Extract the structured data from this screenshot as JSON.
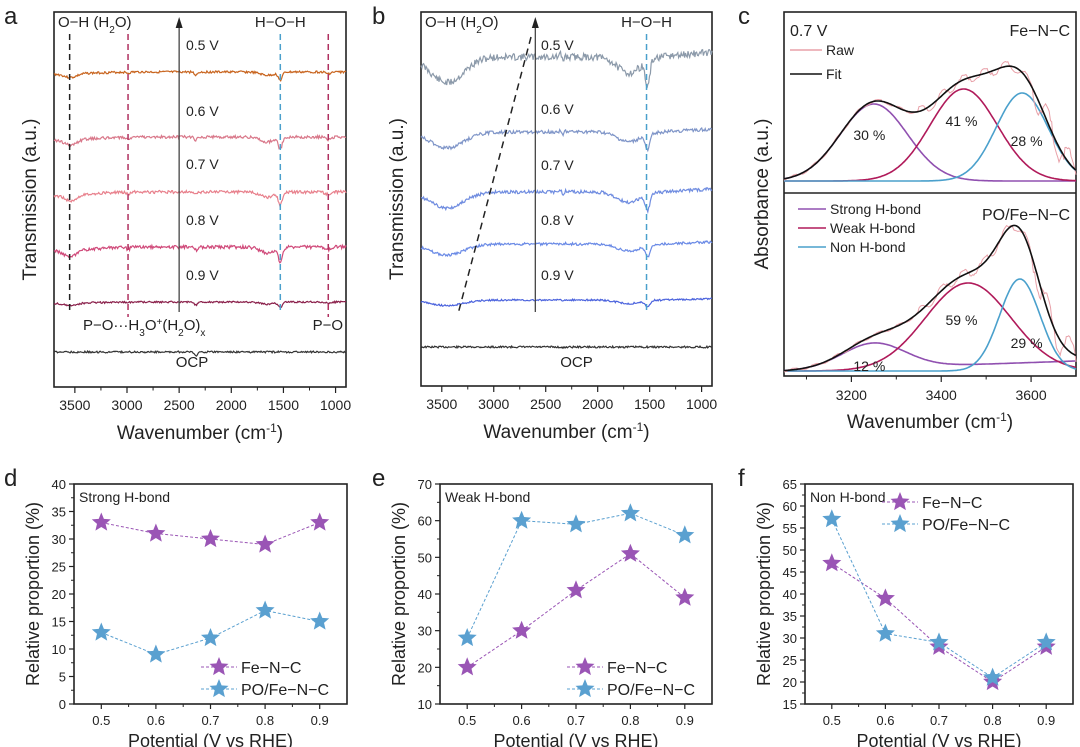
{
  "figure": {
    "panel_labels": [
      "a",
      "b",
      "c",
      "d",
      "e",
      "f"
    ]
  },
  "chart_data": [
    {
      "panel": "a",
      "type": "line",
      "title": "",
      "xlabel": "Wavenumber (cm⁻¹)",
      "xlabel_main": "Wavenumber (cm",
      "xlabel_sup": "-1",
      "ylabel": "Transmission (a.u.)",
      "xlim": [
        3700,
        900
      ],
      "x_ticks": [
        3500,
        3000,
        2500,
        2000,
        1500,
        1000
      ],
      "x_tick_labels": [
        "3500",
        "3000",
        "2500",
        "2000",
        "1500",
        "1000"
      ],
      "series": [
        {
          "name": "0.5 V",
          "color": "#c8641e"
        },
        {
          "name": "0.6 V",
          "color": "#d9788a"
        },
        {
          "name": "0.7 V",
          "color": "#e8808c"
        },
        {
          "name": "0.8 V",
          "color": "#d04a7a"
        },
        {
          "name": "0.9 V",
          "color": "#8a1f4a"
        },
        {
          "name": "OCP",
          "color": "#333333"
        }
      ],
      "annotations": {
        "oh_label": "O−H (H",
        "oh_sub": "2",
        "oh_end": "O)",
        "hoh_label": "H−O−H",
        "po_h3o_label": "P−O···H",
        "po_h3o_sub1": "3",
        "po_h3o_mid": "O",
        "po_h3o_sup": "+",
        "po_h3o_rest": "(H",
        "po_h3o_sub2": "2",
        "po_h3o_end": "O)",
        "po_h3o_subx": "x",
        "po_label": "P−O",
        "ocp_label": "OCP",
        "dashed_lines_cm": [
          3550,
          2990,
          1530,
          1070
        ]
      }
    },
    {
      "panel": "b",
      "type": "line",
      "xlabel": "Wavenumber (cm⁻¹)",
      "xlabel_main": "Wavenumber (cm",
      "xlabel_sup": "-1",
      "ylabel": "Transmission (a.u.)",
      "xlim": [
        3700,
        900
      ],
      "x_ticks": [
        3500,
        3000,
        2500,
        2000,
        1500,
        1000
      ],
      "x_tick_labels": [
        "3500",
        "3000",
        "2500",
        "2000",
        "1500",
        "1000"
      ],
      "series": [
        {
          "name": "0.5 V",
          "color": "#8c9aaa"
        },
        {
          "name": "0.6 V",
          "color": "#7f95c8"
        },
        {
          "name": "0.7 V",
          "color": "#6f8ce0"
        },
        {
          "name": "0.8 V",
          "color": "#6a8ae6"
        },
        {
          "name": "0.9 V",
          "color": "#4a62dd"
        },
        {
          "name": "OCP",
          "color": "#333333"
        }
      ],
      "annotations": {
        "oh_label": "O−H (H",
        "oh_sub": "2",
        "oh_end": "O)",
        "hoh_label": "H−O−H",
        "ocp_label": "OCP"
      }
    },
    {
      "panel": "c",
      "type": "area",
      "xlabel": "Wavenumber (cm⁻¹)",
      "xlabel_main": "Wavenumber (cm",
      "xlabel_sup": "-1",
      "ylabel": "Absorbance (a.u.)",
      "xlim": [
        3050,
        3700
      ],
      "x_ticks": [
        3200,
        3400,
        3600
      ],
      "x_tick_labels": [
        "3200",
        "3400",
        "3600"
      ],
      "potential_label": "0.7 V",
      "legend_top": [
        {
          "name": "Raw",
          "color": "#e8a0a8"
        },
        {
          "name": "Fit",
          "color": "#111111"
        }
      ],
      "legend_bottom": [
        {
          "name": "Strong H-bond",
          "color": "#9050b0"
        },
        {
          "name": "Weak H-bond",
          "color": "#b01a5a"
        },
        {
          "name": "Non H-bond",
          "color": "#4aa0cc"
        }
      ],
      "subplots": [
        {
          "name": "Fe−N−C",
          "components": [
            {
              "name": "Strong H-bond",
              "center": 3250,
              "percent": 30,
              "label": "30 %"
            },
            {
              "name": "Weak H-bond",
              "center": 3450,
              "percent": 41,
              "label": "41 %"
            },
            {
              "name": "Non H-bond",
              "center": 3580,
              "percent": 28,
              "label": "28 %"
            }
          ]
        },
        {
          "name": "PO/Fe−N−C",
          "components": [
            {
              "name": "Strong H-bond",
              "center": 3250,
              "percent": 12,
              "label": "12 %"
            },
            {
              "name": "Weak H-bond",
              "center": 3460,
              "percent": 59,
              "label": "59 %"
            },
            {
              "name": "Non H-bond",
              "center": 3575,
              "percent": 29,
              "label": "29 %"
            }
          ]
        }
      ]
    },
    {
      "panel": "d",
      "type": "scatter",
      "annotation": "Strong H-bond",
      "xlabel": "Potential (V vs RHE)",
      "ylabel": "Relative proportion (%)",
      "x": [
        0.5,
        0.6,
        0.7,
        0.8,
        0.9
      ],
      "xlim": [
        0.45,
        0.95
      ],
      "ylim": [
        0,
        40
      ],
      "y_ticks": [
        0,
        5,
        10,
        15,
        20,
        25,
        30,
        35,
        40
      ],
      "x_tick_labels": [
        "0.5",
        "0.6",
        "0.7",
        "0.8",
        "0.9"
      ],
      "legend_position": "bottom-right",
      "series": [
        {
          "name": "Fe−N−C",
          "color": "#9a55b5",
          "values": [
            33,
            31,
            30,
            29,
            33
          ]
        },
        {
          "name": "PO/Fe−N−C",
          "color": "#5aa0d0",
          "values": [
            13,
            9,
            12,
            17,
            15
          ]
        }
      ]
    },
    {
      "panel": "e",
      "type": "scatter",
      "annotation": "Weak H-bond",
      "xlabel": "Potential (V vs RHE)",
      "ylabel": "Relative proportion (%)",
      "x": [
        0.5,
        0.6,
        0.7,
        0.8,
        0.9
      ],
      "xlim": [
        0.45,
        0.95
      ],
      "ylim": [
        10,
        70
      ],
      "y_ticks": [
        10,
        20,
        30,
        40,
        50,
        60,
        70
      ],
      "x_tick_labels": [
        "0.5",
        "0.6",
        "0.7",
        "0.8",
        "0.9"
      ],
      "legend_position": "bottom-right",
      "series": [
        {
          "name": "Fe−N−C",
          "color": "#9a55b5",
          "values": [
            20,
            30,
            41,
            51,
            39
          ]
        },
        {
          "name": "PO/Fe−N−C",
          "color": "#5aa0d0",
          "values": [
            28,
            60,
            59,
            62,
            56
          ]
        }
      ]
    },
    {
      "panel": "f",
      "type": "scatter",
      "annotation": "Non H-bond",
      "xlabel": "Potential (V vs RHE)",
      "ylabel": "Relative proportion (%)",
      "x": [
        0.5,
        0.6,
        0.7,
        0.8,
        0.9
      ],
      "xlim": [
        0.45,
        0.95
      ],
      "ylim": [
        15,
        65
      ],
      "y_ticks": [
        15,
        20,
        25,
        30,
        35,
        40,
        45,
        50,
        55,
        60,
        65
      ],
      "x_tick_labels": [
        "0.5",
        "0.6",
        "0.7",
        "0.8",
        "0.9"
      ],
      "legend_position": "top-right",
      "series": [
        {
          "name": "Fe−N−C",
          "color": "#9a55b5",
          "values": [
            47,
            39,
            28,
            20,
            28
          ]
        },
        {
          "name": "PO/Fe−N−C",
          "color": "#5aa0d0",
          "values": [
            57,
            31,
            29,
            21,
            29
          ]
        }
      ]
    }
  ]
}
